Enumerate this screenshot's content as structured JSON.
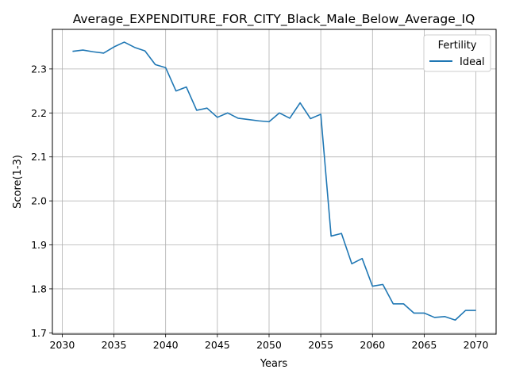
{
  "chart_data": {
    "type": "line",
    "title": "Average_EXPENDITURE_FOR_CITY_Black_Male_Below_Average_IQ",
    "xlabel": "Years",
    "ylabel": "Score(1-3)",
    "xlim": [
      2029.05,
      2071.95
    ],
    "ylim": [
      1.697,
      2.39
    ],
    "xticks": [
      2030,
      2035,
      2040,
      2045,
      2050,
      2055,
      2060,
      2065,
      2070
    ],
    "yticks": [
      1.7,
      1.8,
      1.9,
      2.0,
      2.1,
      2.2,
      2.3
    ],
    "grid": true,
    "legend": {
      "title": "Fertility",
      "placement": "top-right"
    },
    "x": [
      2031,
      2032,
      2033,
      2034,
      2035,
      2036,
      2037,
      2038,
      2039,
      2040,
      2041,
      2042,
      2043,
      2044,
      2045,
      2046,
      2047,
      2048,
      2049,
      2050,
      2051,
      2052,
      2053,
      2054,
      2055,
      2056,
      2057,
      2058,
      2059,
      2060,
      2061,
      2062,
      2063,
      2064,
      2065,
      2066,
      2067,
      2068,
      2069,
      2070
    ],
    "series": [
      {
        "name": "Ideal",
        "color": "#1f77b4",
        "values": [
          2.34,
          2.343,
          2.339,
          2.336,
          2.35,
          2.361,
          2.349,
          2.341,
          2.31,
          2.303,
          2.25,
          2.259,
          2.206,
          2.211,
          2.19,
          2.2,
          2.188,
          2.185,
          2.182,
          2.18,
          2.2,
          2.188,
          2.223,
          2.187,
          2.197,
          1.92,
          1.926,
          1.857,
          1.869,
          1.806,
          1.81,
          1.766,
          1.766,
          1.745,
          1.745,
          1.735,
          1.737,
          1.729,
          1.751,
          1.751
        ]
      }
    ]
  }
}
